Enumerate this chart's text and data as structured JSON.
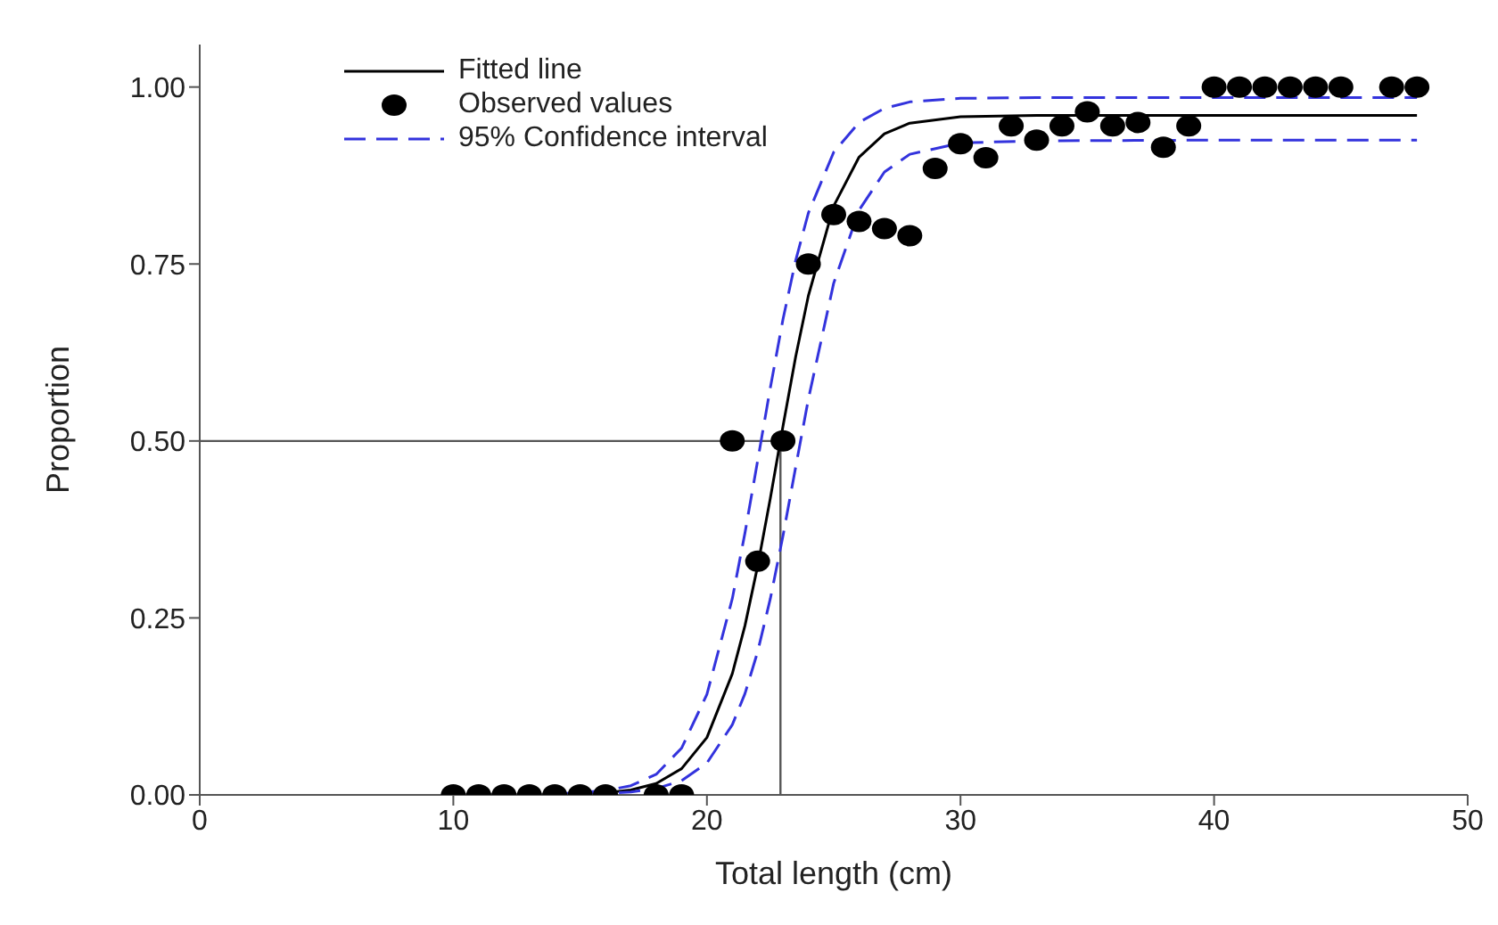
{
  "chart_data": {
    "type": "line",
    "xlabel": "Total length (cm)",
    "ylabel": "Proportion",
    "xlim": [
      0,
      50
    ],
    "xticks": [
      0,
      10,
      20,
      30,
      40,
      50
    ],
    "ylim": [
      0,
      1.06
    ],
    "yticks": [
      {
        "value": 0,
        "label": "0.00"
      },
      {
        "value": 0.25,
        "label": "0.25"
      },
      {
        "value": 0.5,
        "label": "0.50"
      },
      {
        "value": 0.75,
        "label": "0.75"
      },
      {
        "value": 1,
        "label": "1.00"
      }
    ],
    "grid": false,
    "legend": "top left",
    "marker": "none",
    "line_style": "solid",
    "ref_lines": [
      {
        "axis": "y",
        "value": 0.5,
        "color": "#555555"
      },
      {
        "axis": "x",
        "value": 22.9,
        "color": "#555555"
      }
    ],
    "series": [
      {
        "name": "Fitted line",
        "color": "#000000",
        "x": [
          10,
          12,
          14,
          16,
          17,
          18,
          19,
          20,
          21,
          21.5,
          22,
          22.5,
          23,
          23.5,
          24,
          25,
          26,
          27,
          28,
          30,
          33,
          40,
          48
        ],
        "values": [
          0,
          0,
          0,
          0.003,
          0.007,
          0.016,
          0.037,
          0.081,
          0.171,
          0.239,
          0.323,
          0.419,
          0.521,
          0.619,
          0.705,
          0.832,
          0.901,
          0.934,
          0.949,
          0.958,
          0.96,
          0.96,
          0.96
        ]
      },
      {
        "name": "Observed values",
        "type": "scatter",
        "marker": "circle",
        "color": "#000000",
        "x": [
          10,
          11,
          12,
          13,
          14,
          15,
          16,
          18,
          19,
          21,
          22,
          23,
          24,
          25,
          26,
          27,
          28,
          29,
          30,
          31,
          32,
          33,
          34,
          35,
          36,
          37,
          38,
          39,
          40,
          41,
          42,
          43,
          44,
          45,
          47,
          48
        ],
        "values": [
          0,
          0,
          0,
          0,
          0,
          0,
          0,
          0,
          0,
          0.5,
          0.33,
          0.5,
          0.75,
          0.82,
          0.81,
          0.8,
          0.79,
          0.885,
          0.92,
          0.9,
          0.945,
          0.925,
          0.945,
          0.965,
          0.945,
          0.95,
          0.915,
          0.945,
          1,
          1,
          1,
          1,
          1,
          1,
          1,
          1
        ]
      },
      {
        "name": "95% Confidence interval",
        "line_style": "dashed",
        "color": "#3333dd",
        "x": [
          14,
          16,
          17,
          18,
          19,
          20,
          21,
          21.5,
          22,
          22.5,
          23,
          23.5,
          24,
          25,
          26,
          27,
          28,
          30,
          33,
          40,
          48
        ],
        "values": [
          0.001,
          0.006,
          0.013,
          0.029,
          0.066,
          0.142,
          0.277,
          0.37,
          0.472,
          0.575,
          0.672,
          0.755,
          0.822,
          0.908,
          0.95,
          0.97,
          0.979,
          0.984,
          0.985,
          0.985,
          0.985
        ]
      },
      {
        "line_style": "dashed",
        "color": "#3333dd",
        "x": [
          14,
          16,
          17,
          18,
          19,
          20,
          21,
          21.5,
          22,
          22.5,
          23,
          23.5,
          24,
          25,
          26,
          27,
          28,
          30,
          33,
          40,
          48
        ],
        "values": [
          0,
          0.002,
          0.004,
          0.009,
          0.02,
          0.045,
          0.099,
          0.143,
          0.202,
          0.277,
          0.366,
          0.463,
          0.559,
          0.723,
          0.826,
          0.88,
          0.905,
          0.921,
          0.924,
          0.925,
          0.925
        ]
      }
    ]
  }
}
